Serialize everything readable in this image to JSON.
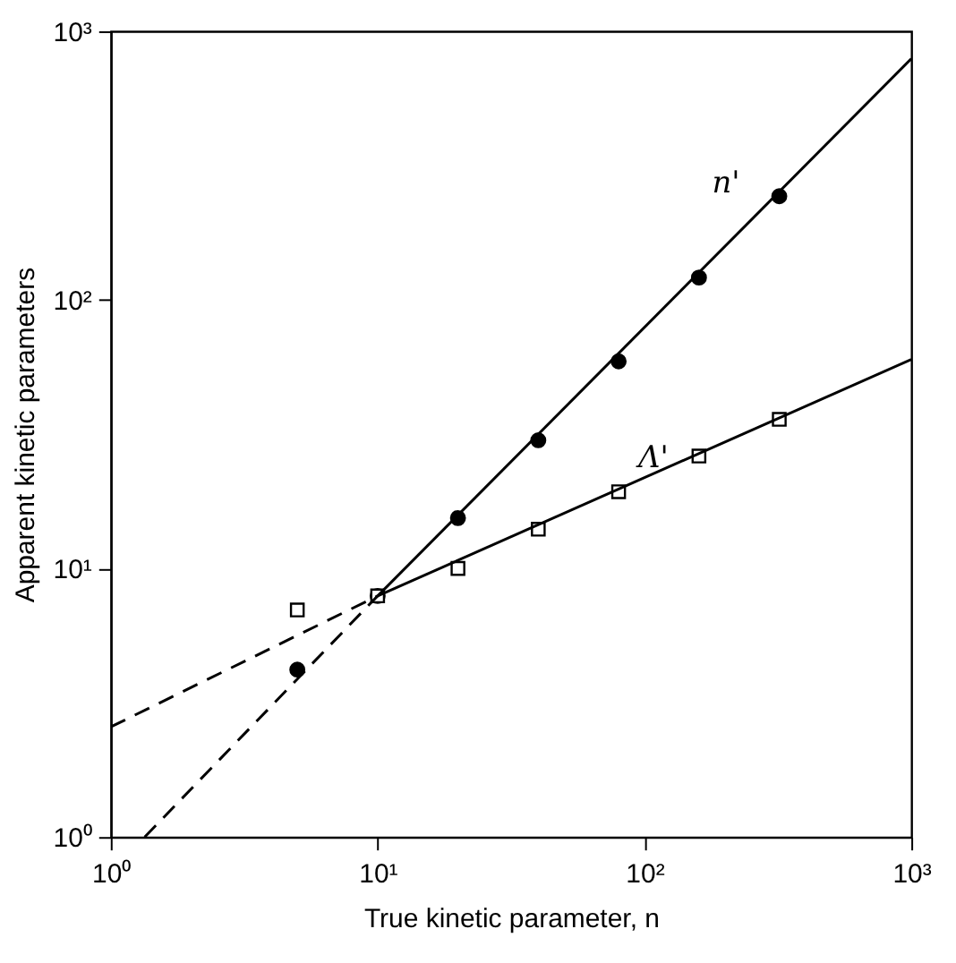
{
  "chart_data": {
    "type": "scatter",
    "xlabel": "True kinetic parameter, n",
    "ylabel": "Apparent  kinetic  parameters",
    "log": "xy",
    "grid": false,
    "xlim": [
      1,
      1000
    ],
    "ylim": [
      1,
      1000
    ],
    "xticks": [
      {
        "value": 1,
        "label": "10⁰"
      },
      {
        "value": 10,
        "label": "10¹"
      },
      {
        "value": 100,
        "label": "10²"
      },
      {
        "value": 1000,
        "label": "10³"
      }
    ],
    "yticks": [
      {
        "value": 1,
        "label": "10⁰"
      },
      {
        "value": 10,
        "label": "10¹"
      },
      {
        "value": 100,
        "label": "10²"
      },
      {
        "value": 1000,
        "label": "10³"
      }
    ],
    "series": [
      {
        "name": "n'",
        "marker": "circle",
        "color": "#000000",
        "x": [
          5,
          10,
          20,
          40,
          80,
          160,
          320
        ],
        "values": [
          4.2,
          7.9,
          15.4,
          30,
          59,
          121,
          243
        ]
      },
      {
        "name": "Λ'",
        "marker": "square",
        "color": "#000000",
        "x": [
          5,
          10,
          20,
          40,
          80,
          160,
          320
        ],
        "values": [
          7.0,
          7.9,
          10.0,
          14.0,
          19.3,
          26.2,
          35.9
        ]
      },
      {
        "type": "line",
        "line_style": "solid",
        "color": "#000000",
        "x": [
          10,
          1000
        ],
        "values": [
          7.9,
          790
        ]
      },
      {
        "type": "line",
        "line_style": "dashed",
        "color": "#000000",
        "x": [
          1.34,
          10
        ],
        "values": [
          1,
          7.9
        ]
      },
      {
        "type": "line",
        "line_style": "solid",
        "color": "#000000",
        "x": [
          10,
          1000
        ],
        "values": [
          7.9,
          60
        ]
      },
      {
        "type": "line",
        "line_style": "dashed",
        "color": "#000000",
        "x": [
          1,
          10
        ],
        "values": [
          2.57,
          7.9
        ]
      }
    ]
  }
}
